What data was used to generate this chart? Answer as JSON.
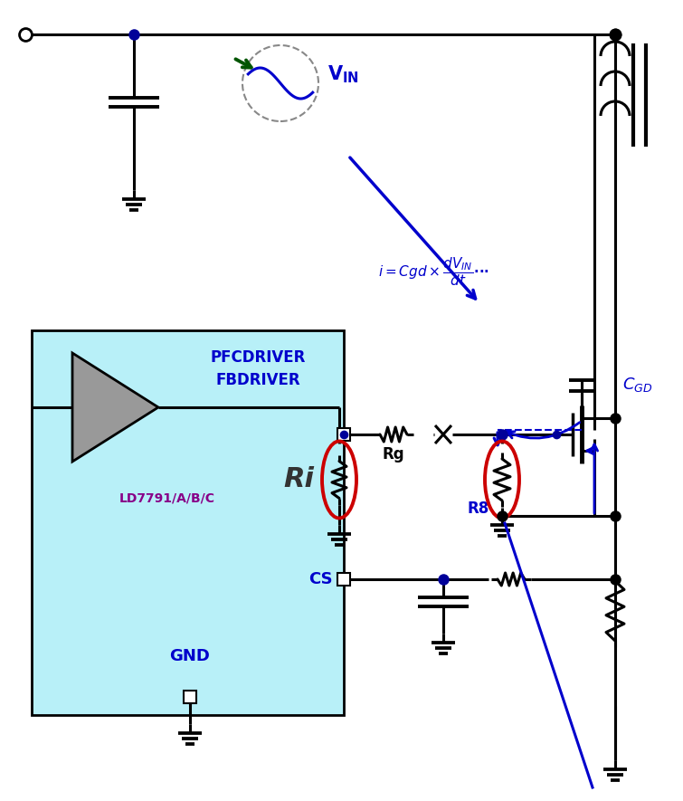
{
  "bg_color": "#ffffff",
  "ic_box_color": "#b8f0f8",
  "ic_box_edge": "#000000",
  "line_color": "#000000",
  "blue_color": "#0000cc",
  "green_color": "#005500",
  "red_color": "#cc0000",
  "purple_color": "#880088",
  "gray_color": "#999999",
  "ic_label1": "PFCDRIVER",
  "ic_label2": "FBDRIVER",
  "ic_label3": "LD7791/A/B/C",
  "ri_label": "Ri",
  "rg_label": "Rg",
  "r8_label": "R8",
  "cs_label": "CS",
  "gnd_label": "GND"
}
